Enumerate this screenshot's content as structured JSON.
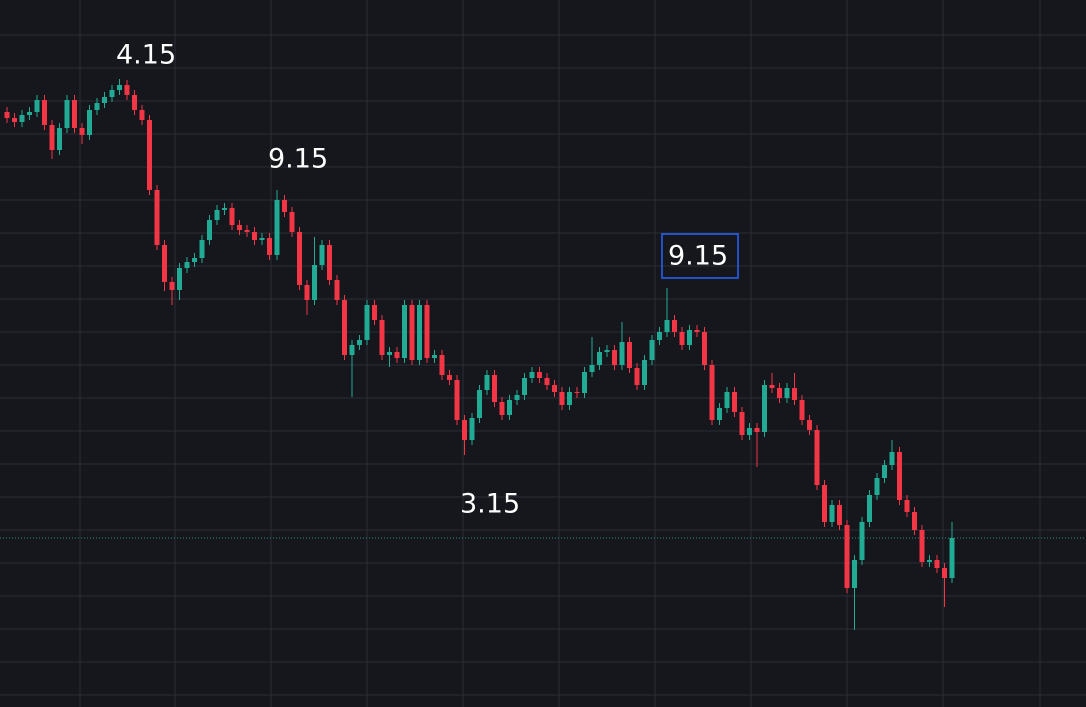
{
  "chart_data": {
    "type": "candlestick",
    "open": [
      595,
      589,
      585,
      592,
      595,
      607,
      582,
      557,
      579,
      607,
      579,
      572,
      597,
      604,
      610,
      617,
      622,
      612,
      597,
      587,
      517,
      462,
      425,
      417,
      439,
      445,
      449,
      467,
      487,
      497,
      499,
      482,
      477,
      475,
      467,
      469,
      452,
      507,
      495,
      475,
      422,
      407,
      442,
      462,
      427,
      407,
      352,
      362,
      367,
      402,
      387,
      352,
      355,
      349,
      402,
      347,
      402,
      349,
      352,
      332,
      327,
      287,
      267,
      289,
      317,
      332,
      305,
      292,
      307,
      312,
      329,
      335,
      329,
      322,
      315,
      302,
      315,
      314,
      335,
      342,
      355,
      357,
      342,
      365,
      339,
      322,
      347,
      367,
      375,
      387,
      375,
      362,
      377,
      375,
      342,
      287,
      299,
      315,
      295,
      272,
      279,
      275,
      322,
      319,
      309,
      319,
      307,
      287,
      277,
      222,
      185,
      202,
      182,
      119,
      147,
      185,
      212,
      229,
      242,
      255,
      207,
      195,
      177,
      145,
      147,
      139,
      129
    ],
    "high": [
      600,
      594,
      597,
      600,
      612,
      612,
      587,
      584,
      612,
      612,
      584,
      602,
      609,
      615,
      622,
      628,
      627,
      617,
      602,
      592,
      522,
      467,
      430,
      444,
      450,
      454,
      472,
      492,
      502,
      504,
      504,
      487,
      482,
      480,
      474,
      474,
      517,
      512,
      500,
      480,
      427,
      470,
      467,
      467,
      432,
      412,
      367,
      372,
      407,
      407,
      392,
      360,
      360,
      407,
      407,
      407,
      407,
      357,
      357,
      337,
      332,
      292,
      294,
      322,
      337,
      337,
      310,
      312,
      317,
      334,
      340,
      340,
      334,
      327,
      320,
      320,
      320,
      340,
      370,
      360,
      362,
      362,
      385,
      370,
      344,
      352,
      372,
      380,
      419,
      392,
      380,
      382,
      382,
      380,
      347,
      304,
      320,
      320,
      300,
      284,
      284,
      327,
      334,
      324,
      324,
      334,
      312,
      292,
      282,
      227,
      207,
      207,
      187,
      152,
      190,
      217,
      234,
      247,
      267,
      260,
      212,
      200,
      182,
      152,
      152,
      144,
      185
    ],
    "low": [
      584,
      580,
      580,
      587,
      590,
      577,
      548,
      552,
      574,
      574,
      563,
      567,
      592,
      599,
      605,
      612,
      607,
      592,
      582,
      512,
      457,
      416,
      402,
      407,
      434,
      440,
      444,
      462,
      482,
      492,
      477,
      472,
      470,
      462,
      462,
      447,
      447,
      490,
      470,
      417,
      392,
      402,
      437,
      422,
      402,
      347,
      310,
      357,
      362,
      382,
      347,
      340,
      344,
      344,
      342,
      342,
      344,
      344,
      327,
      322,
      282,
      252,
      262,
      284,
      312,
      300,
      287,
      287,
      302,
      307,
      324,
      324,
      317,
      310,
      297,
      297,
      309,
      309,
      330,
      337,
      350,
      337,
      337,
      334,
      317,
      317,
      342,
      362,
      370,
      370,
      357,
      357,
      370,
      337,
      282,
      282,
      294,
      290,
      267,
      267,
      240,
      270,
      314,
      304,
      304,
      302,
      282,
      272,
      217,
      180,
      180,
      177,
      114,
      77,
      142,
      180,
      207,
      224,
      237,
      202,
      190,
      172,
      140,
      140,
      134,
      100,
      124
    ],
    "close": [
      589,
      585,
      592,
      595,
      607,
      582,
      557,
      579,
      607,
      579,
      572,
      597,
      604,
      610,
      617,
      622,
      612,
      597,
      587,
      517,
      462,
      425,
      417,
      439,
      445,
      449,
      467,
      487,
      497,
      499,
      482,
      477,
      475,
      467,
      469,
      452,
      507,
      495,
      475,
      422,
      407,
      442,
      462,
      427,
      407,
      352,
      362,
      367,
      402,
      387,
      352,
      355,
      349,
      402,
      347,
      402,
      349,
      352,
      332,
      327,
      287,
      267,
      289,
      317,
      332,
      305,
      292,
      307,
      312,
      329,
      335,
      329,
      322,
      315,
      302,
      315,
      314,
      335,
      342,
      355,
      357,
      342,
      365,
      339,
      322,
      347,
      367,
      375,
      387,
      375,
      362,
      377,
      375,
      342,
      287,
      299,
      315,
      295,
      272,
      279,
      275,
      322,
      319,
      309,
      319,
      307,
      287,
      277,
      222,
      185,
      202,
      182,
      119,
      147,
      185,
      212,
      229,
      242,
      255,
      207,
      195,
      177,
      145,
      147,
      139,
      129,
      169
    ],
    "up_color": "#22ab94",
    "down_color": "#f23645",
    "price_line": 169,
    "ylim": [
      0,
      707
    ],
    "yticks": [
      672,
      639,
      606,
      573,
      540,
      507,
      474,
      441,
      408,
      375,
      342,
      309,
      276,
      243,
      210,
      177,
      144,
      111,
      78,
      45,
      12
    ],
    "grid": true,
    "annotations": [
      "4.15",
      "9.15",
      "9.15",
      "3.15"
    ]
  }
}
